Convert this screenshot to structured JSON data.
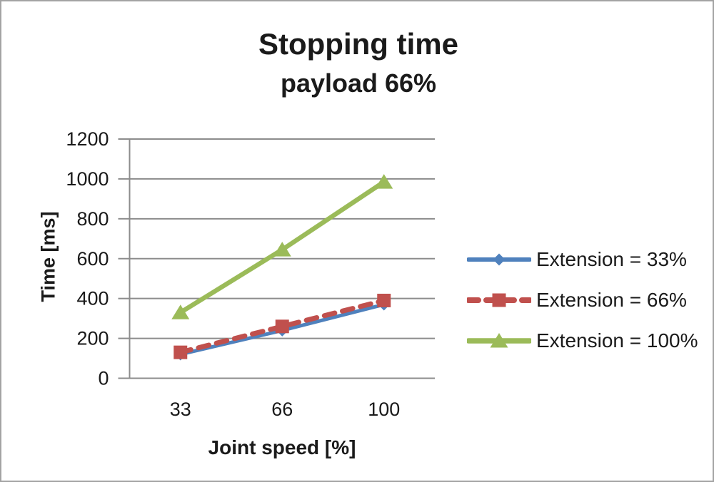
{
  "frame": {
    "background": "#ffffff",
    "border_color": "#a3a3a3"
  },
  "chart_data": {
    "type": "line",
    "title": "Stopping time",
    "subtitle": "payload 66%",
    "xlabel": "Joint speed [%]",
    "ylabel": "Time [ms]",
    "categories": [
      "33",
      "66",
      "100"
    ],
    "ylim": [
      0,
      1200
    ],
    "yticks": [
      0,
      200,
      400,
      600,
      800,
      1000,
      1200
    ],
    "grid": true,
    "legend_position": "right",
    "text_color": "#1a1a1a",
    "gridline_color": "#8c8c8c",
    "axis_color": "#8c8c8c",
    "series": [
      {
        "name": "Extension = 33%",
        "values": [
          120,
          240,
          370
        ],
        "color": "#4F81BD",
        "line_style": "solid",
        "marker": "diamond",
        "line_width": 5
      },
      {
        "name": "Extension = 66%",
        "values": [
          130,
          260,
          390
        ],
        "color": "#C0504D",
        "line_style": "dashed",
        "marker": "square",
        "line_width": 7
      },
      {
        "name": "Extension = 100%",
        "values": [
          330,
          645,
          985
        ],
        "color": "#9BBB59",
        "line_style": "solid",
        "marker": "triangle",
        "line_width": 6.5
      }
    ]
  }
}
